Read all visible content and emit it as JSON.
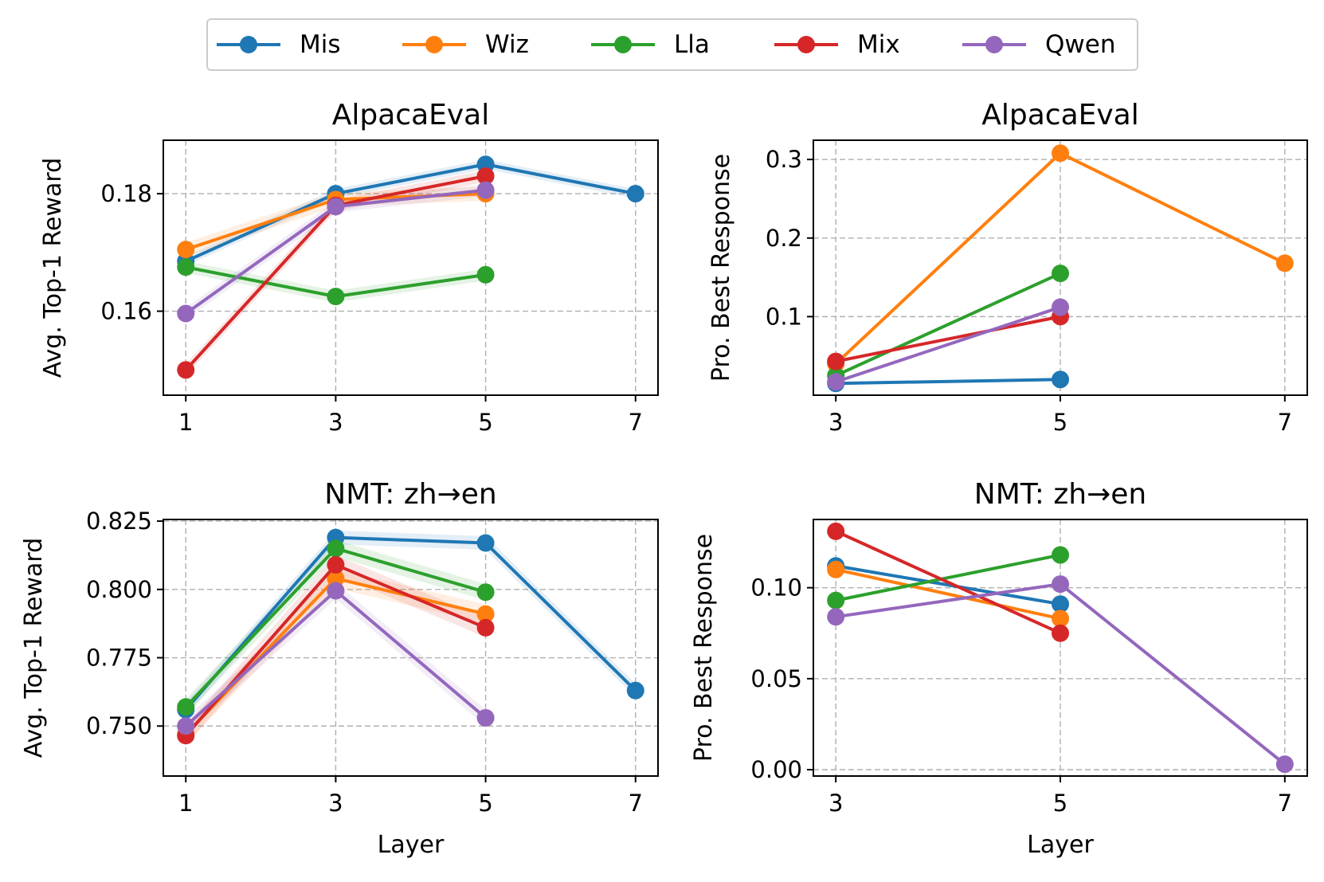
{
  "chart_data": [
    {
      "type": "line",
      "title": "AlpacaEval",
      "xlabel": "",
      "ylabel": "Avg. Top-1 Reward",
      "xticks": [
        1,
        3,
        5,
        7
      ],
      "xlim": [
        0.7,
        7.3
      ],
      "yticks": [
        0.16,
        0.18
      ],
      "ytick_labels": [
        "0.16",
        "0.18"
      ],
      "ylim": [
        0.1457,
        0.1891
      ],
      "grid": true,
      "series": [
        {
          "name": "Mis",
          "color": "#1f77b4",
          "x": [
            1,
            3,
            5,
            7
          ],
          "y": [
            0.1685,
            0.18,
            0.185,
            0.18
          ],
          "band": 0.0008
        },
        {
          "name": "Wiz",
          "color": "#ff7f0e",
          "x": [
            1,
            3,
            5
          ],
          "y": [
            0.1705,
            0.179,
            0.18
          ],
          "band": 0.0012
        },
        {
          "name": "Lla",
          "color": "#2ca02c",
          "x": [
            1,
            3,
            5
          ],
          "y": [
            0.1675,
            0.1625,
            0.1662
          ],
          "band": 0.001
        },
        {
          "name": "Mix",
          "color": "#d62728",
          "x": [
            1,
            3,
            5
          ],
          "y": [
            0.15,
            0.178,
            0.183
          ],
          "band": 0.001
        },
        {
          "name": "Qwen",
          "color": "#9467bd",
          "x": [
            1,
            3,
            5
          ],
          "y": [
            0.1596,
            0.1778,
            0.1806
          ],
          "band": 0.001
        }
      ]
    },
    {
      "type": "line",
      "title": "AlpacaEval",
      "xlabel": "",
      "ylabel": "Pro. Best Response",
      "xticks": [
        3,
        5,
        7
      ],
      "xlim": [
        2.8,
        7.2
      ],
      "yticks": [
        0.1,
        0.2,
        0.3
      ],
      "ytick_labels": [
        "0.1",
        "0.2",
        "0.3"
      ],
      "ylim": [
        0.0,
        0.3245
      ],
      "grid": true,
      "series": [
        {
          "name": "Mis",
          "color": "#1f77b4",
          "x": [
            3,
            5
          ],
          "y": [
            0.015,
            0.02
          ]
        },
        {
          "name": "Wiz",
          "color": "#ff7f0e",
          "x": [
            3,
            5,
            7
          ],
          "y": [
            0.04,
            0.308,
            0.168
          ]
        },
        {
          "name": "Lla",
          "color": "#2ca02c",
          "x": [
            3,
            5
          ],
          "y": [
            0.025,
            0.155
          ]
        },
        {
          "name": "Mix",
          "color": "#d62728",
          "x": [
            3,
            5
          ],
          "y": [
            0.043,
            0.1
          ]
        },
        {
          "name": "Qwen",
          "color": "#9467bd",
          "x": [
            3,
            5
          ],
          "y": [
            0.017,
            0.112
          ]
        }
      ]
    },
    {
      "type": "line",
      "title": "NMT: zh→en",
      "xlabel": "Layer",
      "ylabel": "Avg. Top-1 Reward",
      "xticks": [
        1,
        3,
        5,
        7
      ],
      "xlim": [
        0.7,
        7.3
      ],
      "yticks": [
        0.75,
        0.775,
        0.8,
        0.825
      ],
      "ytick_labels": [
        "0.750",
        "0.775",
        "0.800",
        "0.825"
      ],
      "ylim": [
        0.7317,
        0.8256
      ],
      "grid": true,
      "series": [
        {
          "name": "Mis",
          "color": "#1f77b4",
          "x": [
            1,
            3,
            5,
            7
          ],
          "y": [
            0.756,
            0.819,
            0.817,
            0.763
          ],
          "band": 0.0025
        },
        {
          "name": "Wiz",
          "color": "#ff7f0e",
          "x": [
            1,
            3,
            5
          ],
          "y": [
            0.747,
            0.804,
            0.791
          ],
          "band": 0.0035
        },
        {
          "name": "Lla",
          "color": "#2ca02c",
          "x": [
            1,
            3,
            5
          ],
          "y": [
            0.757,
            0.815,
            0.799
          ],
          "band": 0.003
        },
        {
          "name": "Mix",
          "color": "#d62728",
          "x": [
            1,
            3,
            5
          ],
          "y": [
            0.7465,
            0.809,
            0.786
          ],
          "band": 0.0035
        },
        {
          "name": "Qwen",
          "color": "#9467bd",
          "x": [
            1,
            3,
            5
          ],
          "y": [
            0.75,
            0.7995,
            0.753
          ],
          "band": 0.003
        }
      ]
    },
    {
      "type": "line",
      "title": "NMT: zh→en",
      "xlabel": "Layer",
      "ylabel": "Pro. Best Response",
      "xticks": [
        3,
        5,
        7
      ],
      "xlim": [
        2.8,
        7.2
      ],
      "yticks": [
        0.0,
        0.05,
        0.1
      ],
      "ytick_labels": [
        "0.00",
        "0.05",
        "0.10"
      ],
      "ylim": [
        -0.0035,
        0.1375
      ],
      "grid": true,
      "series": [
        {
          "name": "Mis",
          "color": "#1f77b4",
          "x": [
            3,
            5
          ],
          "y": [
            0.112,
            0.091
          ]
        },
        {
          "name": "Wiz",
          "color": "#ff7f0e",
          "x": [
            3,
            5
          ],
          "y": [
            0.11,
            0.083
          ]
        },
        {
          "name": "Lla",
          "color": "#2ca02c",
          "x": [
            3,
            5
          ],
          "y": [
            0.093,
            0.118
          ]
        },
        {
          "name": "Mix",
          "color": "#d62728",
          "x": [
            3,
            5
          ],
          "y": [
            0.131,
            0.075
          ]
        },
        {
          "name": "Qwen",
          "color": "#9467bd",
          "x": [
            3,
            5,
            7
          ],
          "y": [
            0.084,
            0.102,
            0.003
          ]
        }
      ]
    }
  ],
  "legend": {
    "location": "top-center",
    "entries": [
      {
        "label": "Mis",
        "color": "#1f77b4"
      },
      {
        "label": "Wiz",
        "color": "#ff7f0e"
      },
      {
        "label": "Lla",
        "color": "#2ca02c"
      },
      {
        "label": "Mix",
        "color": "#d62728"
      },
      {
        "label": "Qwen",
        "color": "#9467bd"
      }
    ]
  }
}
